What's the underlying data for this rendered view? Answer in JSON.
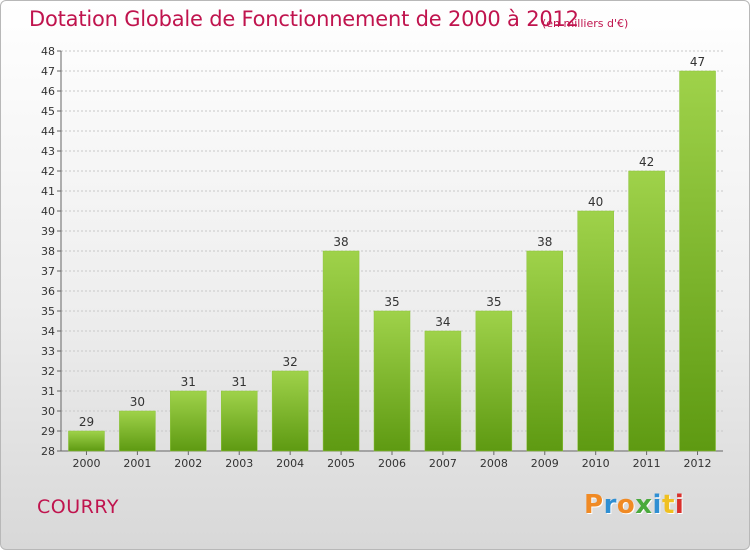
{
  "header": {
    "title": "Dotation Globale de Fonctionnement de 2000 à 2012",
    "subtitle": "(en milliers d'€)"
  },
  "footer": {
    "commune": "COURRY",
    "logo": {
      "letters": [
        "P",
        "r",
        "o",
        "x",
        "i",
        "t",
        "i"
      ],
      "colors": [
        "#f08a24",
        "#2f8fd3",
        "#f08a24",
        "#4aaa3c",
        "#2f8fd3",
        "#f0c020",
        "#d9302c"
      ]
    }
  },
  "chart_data": {
    "type": "bar",
    "categories": [
      "2000",
      "2001",
      "2002",
      "2003",
      "2004",
      "2005",
      "2006",
      "2007",
      "2008",
      "2009",
      "2010",
      "2011",
      "2012"
    ],
    "values": [
      29,
      30,
      31,
      31,
      32,
      38,
      35,
      34,
      35,
      38,
      40,
      42,
      47
    ],
    "ylim": [
      28,
      48
    ],
    "yticks": [
      28,
      29,
      30,
      31,
      32,
      33,
      34,
      35,
      36,
      37,
      38,
      39,
      40,
      41,
      42,
      43,
      44,
      45,
      46,
      47,
      48
    ],
    "grid": true,
    "bar_color_top": "#9fd24a",
    "bar_color_bottom": "#5e9a12",
    "title": "Dotation Globale de Fonctionnement de 2000 à 2012",
    "xlabel": "",
    "ylabel": ""
  }
}
